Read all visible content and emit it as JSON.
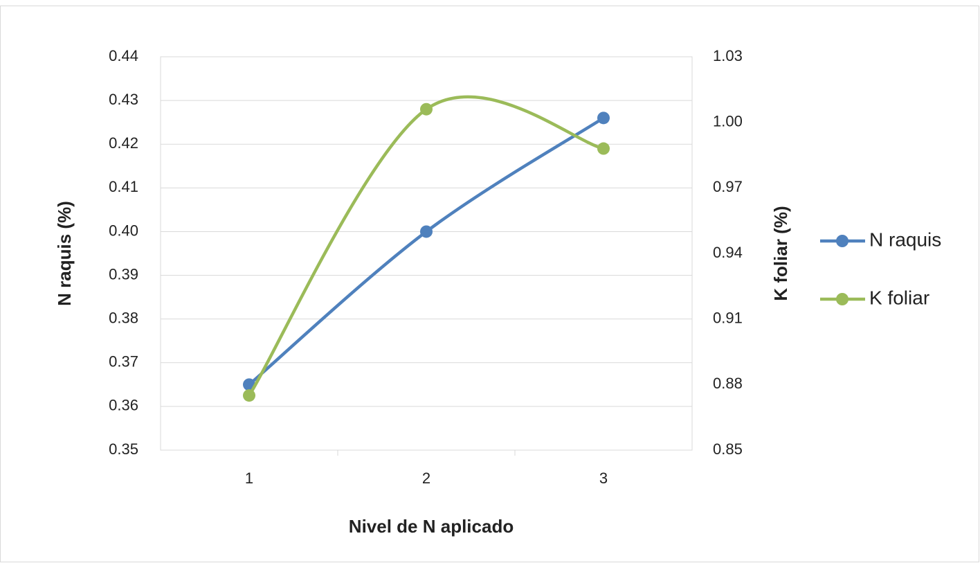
{
  "chart_data": {
    "type": "line",
    "categories": [
      "1",
      "2",
      "3"
    ],
    "x_label": "Nivel de N aplicado",
    "y_label": "N raquis (%)",
    "y2_label": "K foliar (%)",
    "ylim": [
      0.35,
      0.44
    ],
    "yticks": [
      0.35,
      0.36,
      0.37,
      0.38,
      0.39,
      {
        "value": 0.4,
        "label": "0.40"
      },
      0.41,
      0.42,
      0.43,
      0.44
    ],
    "y2lim": [
      0.85,
      1.03
    ],
    "y2ticks": [
      0.85,
      0.88,
      0.91,
      0.94,
      0.97,
      {
        "value": 1,
        "label": "1.00"
      },
      1.03
    ],
    "grid": true,
    "smooth": true,
    "legend": "right",
    "series": [
      {
        "name": "N raquis",
        "color": "#4f81bd",
        "values": [
          0.365,
          0.4,
          0.426
        ]
      },
      {
        "name": "K foliar",
        "color": "#9bbb59",
        "axis": "y2",
        "values": [
          0.875,
          1.006,
          0.988
        ]
      }
    ]
  }
}
